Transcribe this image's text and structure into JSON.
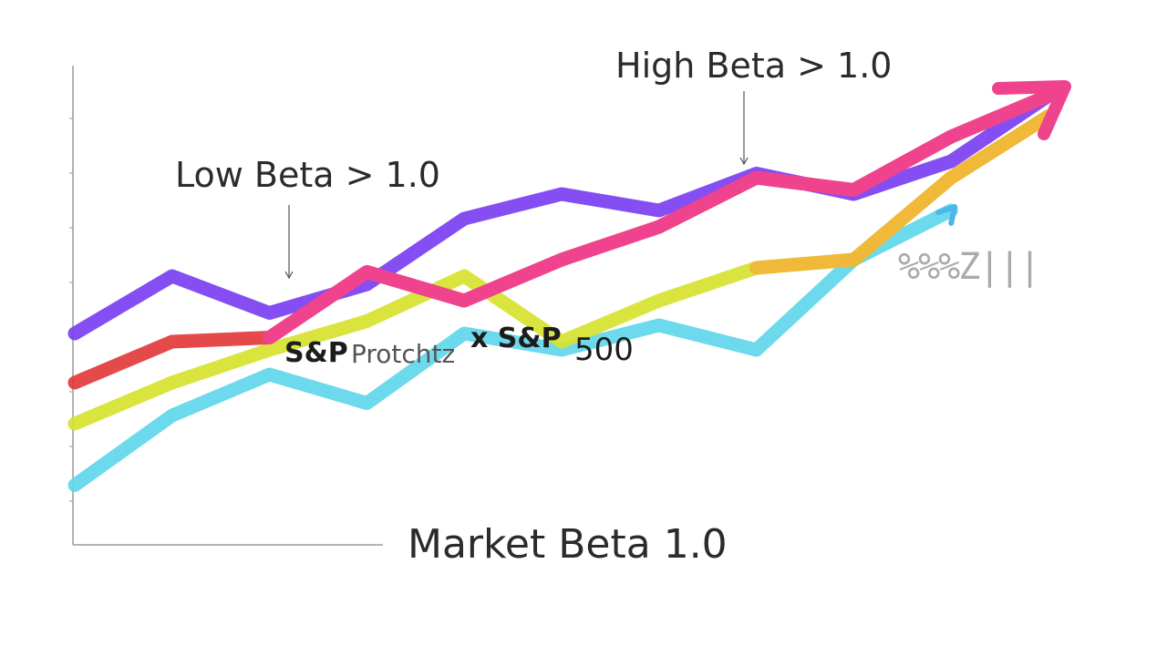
{
  "chart_data": {
    "type": "line",
    "annotations": {
      "high_beta": "High Beta > 1.0",
      "low_beta": "Low Beta > 1.0",
      "market_beta": "Market Beta 1.0",
      "sp_label": "S&P",
      "sp_garble": "Protchtz",
      "sp_label_2": "x S&P",
      "sp_500": "500",
      "scribble": "%%%Z|||"
    },
    "series": [
      {
        "color": "#7b3ff2",
        "x": [
          0,
          1,
          2,
          3,
          4,
          5,
          6,
          7,
          8,
          9,
          10
        ],
        "values": [
          42,
          56,
          47,
          54,
          70,
          76,
          72,
          81,
          76,
          84,
          100
        ]
      },
      {
        "color": "#e23b3b",
        "x": [
          0,
          1,
          2,
          3,
          4,
          5,
          6,
          7,
          8,
          9,
          10
        ],
        "values": [
          30,
          40,
          41,
          57,
          50,
          60,
          68,
          80,
          77,
          90,
          100
        ]
      },
      {
        "color": "#d7e22e",
        "x": [
          0,
          1,
          2,
          3,
          4,
          5,
          6,
          7,
          8,
          9,
          10
        ],
        "values": [
          20,
          30,
          38,
          45,
          56,
          40,
          50,
          58,
          60,
          80,
          95
        ]
      },
      {
        "color": "#5fd6ea",
        "x": [
          0,
          1,
          2,
          3,
          4,
          5,
          6,
          7,
          8,
          9
        ],
        "values": [
          5,
          22,
          32,
          25,
          42,
          38,
          44,
          38,
          60,
          72
        ]
      }
    ],
    "colors": {
      "pink": "#f0438e",
      "orange": "#f3b43a",
      "purple": "#7b3ff2",
      "red": "#e23b3b",
      "yellow": "#d7e22e",
      "cyan": "#5fd6ea",
      "axis": "#9a9a9a"
    },
    "ylim": [
      0,
      100
    ],
    "grid": false,
    "legend": "none"
  }
}
